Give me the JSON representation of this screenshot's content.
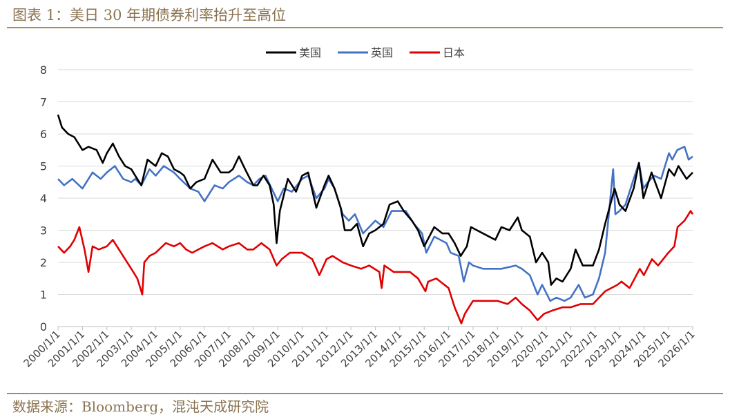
{
  "header": {
    "title": "图表 1：美日 30 年期债券利率抬升至高位"
  },
  "footer": {
    "source": "数据来源：Bloomberg，混沌天成研究院"
  },
  "colors": {
    "us": "#000000",
    "uk": "#4472c4",
    "jp": "#e00000",
    "brand": "#8a7350"
  },
  "chart_data": {
    "type": "line",
    "title": "",
    "xlabel": "",
    "ylabel": "",
    "ylim": [
      0,
      8
    ],
    "yticks": [
      0,
      1,
      2,
      3,
      4,
      5,
      6,
      7,
      8
    ],
    "grid": "horizontal",
    "legend_position": "top-center",
    "xlim": [
      "2000/1/1",
      "2026/1/1"
    ],
    "xtick_labels": [
      "2000/1/1",
      "2001/1/1",
      "2002/1/1",
      "2003/1/1",
      "2004/1/1",
      "2005/1/1",
      "2006/1/1",
      "2007/1/1",
      "2008/1/1",
      "2009/1/1",
      "2010/1/1",
      "2011/1/1",
      "2012/1/1",
      "2013/1/1",
      "2014/1/1",
      "2015/1/1",
      "2016/1/1",
      "2017/1/1",
      "2018/1/1",
      "2019/1/1",
      "2020/1/1",
      "2021/1/1",
      "2022/1/1",
      "2023/1/1",
      "2024/1/1",
      "2025/1/1",
      "2026/1/1"
    ],
    "series": [
      {
        "name": "美国",
        "color": "#000000",
        "points": [
          [
            "2000/1/1",
            6.6
          ],
          [
            "2000/3/1",
            6.2
          ],
          [
            "2000/6/1",
            6.0
          ],
          [
            "2000/9/1",
            5.9
          ],
          [
            "2001/1/1",
            5.5
          ],
          [
            "2001/4/1",
            5.6
          ],
          [
            "2001/8/1",
            5.5
          ],
          [
            "2001/11/1",
            5.1
          ],
          [
            "2002/1/1",
            5.4
          ],
          [
            "2002/4/1",
            5.7
          ],
          [
            "2002/7/1",
            5.3
          ],
          [
            "2002/10/1",
            5.0
          ],
          [
            "2003/1/1",
            4.9
          ],
          [
            "2003/3/1",
            4.7
          ],
          [
            "2003/6/1",
            4.4
          ],
          [
            "2003/9/1",
            5.2
          ],
          [
            "2004/1/1",
            5.0
          ],
          [
            "2004/4/1",
            5.4
          ],
          [
            "2004/7/1",
            5.3
          ],
          [
            "2004/10/1",
            4.9
          ],
          [
            "2005/1/1",
            4.8
          ],
          [
            "2005/3/1",
            4.7
          ],
          [
            "2005/6/1",
            4.3
          ],
          [
            "2005/9/1",
            4.5
          ],
          [
            "2006/1/1",
            4.6
          ],
          [
            "2006/5/1",
            5.2
          ],
          [
            "2006/9/1",
            4.8
          ],
          [
            "2007/1/1",
            4.8
          ],
          [
            "2007/3/1",
            4.9
          ],
          [
            "2007/6/1",
            5.3
          ],
          [
            "2007/9/1",
            4.9
          ],
          [
            "2008/1/1",
            4.4
          ],
          [
            "2008/3/1",
            4.4
          ],
          [
            "2008/6/1",
            4.7
          ],
          [
            "2008/9/1",
            4.4
          ],
          [
            "2008/11/1",
            3.8
          ],
          [
            "2008/12/15",
            2.6
          ],
          [
            "2009/2/1",
            3.6
          ],
          [
            "2009/6/1",
            4.6
          ],
          [
            "2009/10/1",
            4.2
          ],
          [
            "2010/1/1",
            4.7
          ],
          [
            "2010/4/1",
            4.8
          ],
          [
            "2010/8/1",
            3.7
          ],
          [
            "2010/12/1",
            4.4
          ],
          [
            "2011/2/1",
            4.7
          ],
          [
            "2011/5/1",
            4.3
          ],
          [
            "2011/8/1",
            3.7
          ],
          [
            "2011/10/1",
            3.0
          ],
          [
            "2012/1/1",
            3.0
          ],
          [
            "2012/4/1",
            3.2
          ],
          [
            "2012/7/1",
            2.5
          ],
          [
            "2012/10/1",
            2.9
          ],
          [
            "2013/1/1",
            3.0
          ],
          [
            "2013/5/1",
            3.2
          ],
          [
            "2013/8/1",
            3.8
          ],
          [
            "2013/12/1",
            3.9
          ],
          [
            "2014/3/1",
            3.6
          ],
          [
            "2014/7/1",
            3.3
          ],
          [
            "2014/10/1",
            3.0
          ],
          [
            "2015/1/1",
            2.5
          ],
          [
            "2015/6/1",
            3.1
          ],
          [
            "2015/10/1",
            2.9
          ],
          [
            "2016/1/1",
            2.9
          ],
          [
            "2016/4/1",
            2.6
          ],
          [
            "2016/7/1",
            2.2
          ],
          [
            "2016/10/1",
            2.5
          ],
          [
            "2016/12/1",
            3.1
          ],
          [
            "2017/3/1",
            3.0
          ],
          [
            "2017/9/1",
            2.8
          ],
          [
            "2017/12/1",
            2.7
          ],
          [
            "2018/3/1",
            3.1
          ],
          [
            "2018/7/1",
            3.0
          ],
          [
            "2018/11/1",
            3.4
          ],
          [
            "2019/1/1",
            3.0
          ],
          [
            "2019/5/1",
            2.8
          ],
          [
            "2019/8/1",
            2.0
          ],
          [
            "2019/11/1",
            2.3
          ],
          [
            "2020/2/1",
            2.0
          ],
          [
            "2020/3/15",
            1.3
          ],
          [
            "2020/6/1",
            1.5
          ],
          [
            "2020/9/1",
            1.4
          ],
          [
            "2021/1/1",
            1.8
          ],
          [
            "2021/3/15",
            2.4
          ],
          [
            "2021/7/1",
            1.9
          ],
          [
            "2021/12/1",
            1.9
          ],
          [
            "2022/3/1",
            2.4
          ],
          [
            "2022/6/1",
            3.2
          ],
          [
            "2022/10/20",
            4.3
          ],
          [
            "2023/1/1",
            3.8
          ],
          [
            "2023/4/1",
            3.6
          ],
          [
            "2023/8/1",
            4.3
          ],
          [
            "2023/10/20",
            5.1
          ],
          [
            "2023/12/25",
            4.0
          ],
          [
            "2024/4/25",
            4.8
          ],
          [
            "2024/9/15",
            4.0
          ],
          [
            "2025/1/10",
            4.9
          ],
          [
            "2025/4/1",
            4.7
          ],
          [
            "2025/6/1",
            5.0
          ],
          [
            "2025/10/1",
            4.6
          ],
          [
            "2026/1/1",
            4.8
          ]
        ]
      },
      {
        "name": "英国",
        "color": "#4472c4",
        "points": [
          [
            "2000/1/1",
            4.6
          ],
          [
            "2000/4/1",
            4.4
          ],
          [
            "2000/8/1",
            4.6
          ],
          [
            "2001/1/1",
            4.3
          ],
          [
            "2001/6/1",
            4.8
          ],
          [
            "2001/10/1",
            4.6
          ],
          [
            "2002/1/1",
            4.8
          ],
          [
            "2002/5/1",
            5.0
          ],
          [
            "2002/9/1",
            4.6
          ],
          [
            "2003/1/1",
            4.5
          ],
          [
            "2003/3/1",
            4.6
          ],
          [
            "2003/6/1",
            4.4
          ],
          [
            "2003/10/1",
            4.9
          ],
          [
            "2004/1/1",
            4.7
          ],
          [
            "2004/5/1",
            5.0
          ],
          [
            "2004/10/1",
            4.8
          ],
          [
            "2005/1/1",
            4.6
          ],
          [
            "2005/6/1",
            4.3
          ],
          [
            "2005/10/1",
            4.2
          ],
          [
            "2006/1/1",
            3.9
          ],
          [
            "2006/6/1",
            4.4
          ],
          [
            "2006/10/1",
            4.3
          ],
          [
            "2007/1/1",
            4.5
          ],
          [
            "2007/6/1",
            4.7
          ],
          [
            "2007/10/1",
            4.5
          ],
          [
            "2008/1/1",
            4.4
          ],
          [
            "2008/4/1",
            4.6
          ],
          [
            "2008/7/1",
            4.7
          ],
          [
            "2008/10/1",
            4.3
          ],
          [
            "2009/1/1",
            3.9
          ],
          [
            "2009/4/1",
            4.3
          ],
          [
            "2009/8/1",
            4.2
          ],
          [
            "2010/1/1",
            4.6
          ],
          [
            "2010/4/1",
            4.7
          ],
          [
            "2010/8/1",
            4.0
          ],
          [
            "2010/12/1",
            4.3
          ],
          [
            "2011/2/1",
            4.6
          ],
          [
            "2011/5/1",
            4.3
          ],
          [
            "2011/9/1",
            3.5
          ],
          [
            "2011/12/1",
            3.3
          ],
          [
            "2012/3/1",
            3.5
          ],
          [
            "2012/7/1",
            2.9
          ],
          [
            "2012/10/1",
            3.1
          ],
          [
            "2013/1/1",
            3.3
          ],
          [
            "2013/5/1",
            3.1
          ],
          [
            "2013/9/1",
            3.6
          ],
          [
            "2013/12/1",
            3.6
          ],
          [
            "2014/4/1",
            3.6
          ],
          [
            "2014/8/1",
            3.2
          ],
          [
            "2014/12/1",
            2.9
          ],
          [
            "2015/2/1",
            2.3
          ],
          [
            "2015/6/1",
            2.8
          ],
          [
            "2015/12/1",
            2.6
          ],
          [
            "2016/2/1",
            2.3
          ],
          [
            "2016/6/1",
            2.2
          ],
          [
            "2016/8/15",
            1.4
          ],
          [
            "2016/11/1",
            2.0
          ],
          [
            "2017/1/1",
            1.9
          ],
          [
            "2017/6/1",
            1.8
          ],
          [
            "2017/12/1",
            1.8
          ],
          [
            "2018/3/1",
            1.8
          ],
          [
            "2018/10/1",
            1.9
          ],
          [
            "2019/1/1",
            1.8
          ],
          [
            "2019/5/1",
            1.6
          ],
          [
            "2019/8/25",
            1.0
          ],
          [
            "2019/11/1",
            1.3
          ],
          [
            "2020/3/1",
            0.8
          ],
          [
            "2020/6/1",
            0.9
          ],
          [
            "2020/10/1",
            0.8
          ],
          [
            "2021/1/1",
            0.9
          ],
          [
            "2021/5/1",
            1.3
          ],
          [
            "2021/8/1",
            0.9
          ],
          [
            "2021/12/1",
            1.0
          ],
          [
            "2022/3/1",
            1.5
          ],
          [
            "2022/6/1",
            2.3
          ],
          [
            "2022/9/28",
            4.9
          ],
          [
            "2022/11/1",
            3.5
          ],
          [
            "2023/1/1",
            3.6
          ],
          [
            "2023/4/1",
            3.8
          ],
          [
            "2023/8/1",
            4.6
          ],
          [
            "2023/10/20",
            5.1
          ],
          [
            "2023/12/25",
            4.3
          ],
          [
            "2024/3/1",
            4.5
          ],
          [
            "2024/6/1",
            4.7
          ],
          [
            "2024/9/15",
            4.6
          ],
          [
            "2025/1/10",
            5.4
          ],
          [
            "2025/3/1",
            5.2
          ],
          [
            "2025/5/15",
            5.5
          ],
          [
            "2025/9/1",
            5.6
          ],
          [
            "2025/11/1",
            5.2
          ],
          [
            "2026/1/1",
            5.3
          ]
        ]
      },
      {
        "name": "日本",
        "color": "#e00000",
        "points": [
          [
            "2000/1/1",
            2.5
          ],
          [
            "2000/4/1",
            2.3
          ],
          [
            "2000/7/1",
            2.5
          ],
          [
            "2000/9/1",
            2.7
          ],
          [
            "2000/11/15",
            3.1
          ],
          [
            "2001/2/1",
            2.4
          ],
          [
            "2001/4/1",
            1.7
          ],
          [
            "2001/6/1",
            2.5
          ],
          [
            "2001/9/1",
            2.4
          ],
          [
            "2002/1/1",
            2.5
          ],
          [
            "2002/4/1",
            2.7
          ],
          [
            "2002/7/1",
            2.4
          ],
          [
            "2002/10/1",
            2.1
          ],
          [
            "2003/1/1",
            1.8
          ],
          [
            "2003/4/1",
            1.5
          ],
          [
            "2003/6/15",
            1.0
          ],
          [
            "2003/7/15",
            2.0
          ],
          [
            "2003/10/1",
            2.2
          ],
          [
            "2004/1/1",
            2.3
          ],
          [
            "2004/6/1",
            2.6
          ],
          [
            "2004/10/1",
            2.5
          ],
          [
            "2005/1/1",
            2.6
          ],
          [
            "2005/4/1",
            2.4
          ],
          [
            "2005/7/1",
            2.3
          ],
          [
            "2005/10/1",
            2.4
          ],
          [
            "2006/1/1",
            2.5
          ],
          [
            "2006/5/1",
            2.6
          ],
          [
            "2006/10/1",
            2.4
          ],
          [
            "2007/1/1",
            2.5
          ],
          [
            "2007/6/1",
            2.6
          ],
          [
            "2007/10/1",
            2.4
          ],
          [
            "2008/1/1",
            2.4
          ],
          [
            "2008/5/1",
            2.6
          ],
          [
            "2008/9/1",
            2.4
          ],
          [
            "2008/12/15",
            1.9
          ],
          [
            "2009/3/1",
            2.1
          ],
          [
            "2009/7/1",
            2.3
          ],
          [
            "2010/1/1",
            2.3
          ],
          [
            "2010/6/1",
            2.1
          ],
          [
            "2010/9/15",
            1.6
          ],
          [
            "2011/1/1",
            2.1
          ],
          [
            "2011/4/1",
            2.2
          ],
          [
            "2011/9/1",
            2.0
          ],
          [
            "2012/1/1",
            1.9
          ],
          [
            "2012/6/1",
            1.8
          ],
          [
            "2012/10/1",
            1.9
          ],
          [
            "2013/3/1",
            1.7
          ],
          [
            "2013/4/5",
            1.2
          ],
          [
            "2013/5/15",
            1.9
          ],
          [
            "2013/10/1",
            1.7
          ],
          [
            "2014/1/1",
            1.7
          ],
          [
            "2014/6/1",
            1.7
          ],
          [
            "2014/10/1",
            1.5
          ],
          [
            "2015/1/20",
            1.1
          ],
          [
            "2015/3/1",
            1.4
          ],
          [
            "2015/7/1",
            1.5
          ],
          [
            "2016/1/1",
            1.2
          ],
          [
            "2016/4/1",
            0.6
          ],
          [
            "2016/7/10",
            0.1
          ],
          [
            "2016/9/1",
            0.4
          ],
          [
            "2017/1/1",
            0.8
          ],
          [
            "2017/6/1",
            0.8
          ],
          [
            "2018/1/1",
            0.8
          ],
          [
            "2018/6/1",
            0.7
          ],
          [
            "2018/10/1",
            0.9
          ],
          [
            "2019/1/1",
            0.7
          ],
          [
            "2019/5/1",
            0.5
          ],
          [
            "2019/8/25",
            0.2
          ],
          [
            "2019/12/1",
            0.4
          ],
          [
            "2020/4/1",
            0.5
          ],
          [
            "2020/9/1",
            0.6
          ],
          [
            "2021/1/1",
            0.6
          ],
          [
            "2021/6/1",
            0.7
          ],
          [
            "2021/12/1",
            0.7
          ],
          [
            "2022/3/1",
            0.9
          ],
          [
            "2022/6/1",
            1.1
          ],
          [
            "2022/12/1",
            1.3
          ],
          [
            "2023/2/1",
            1.4
          ],
          [
            "2023/6/1",
            1.2
          ],
          [
            "2023/11/1",
            1.8
          ],
          [
            "2024/1/1",
            1.6
          ],
          [
            "2024/5/1",
            2.1
          ],
          [
            "2024/8/1",
            1.9
          ],
          [
            "2025/1/1",
            2.3
          ],
          [
            "2025/4/1",
            2.5
          ],
          [
            "2025/5/20",
            3.1
          ],
          [
            "2025/9/1",
            3.3
          ],
          [
            "2025/12/1",
            3.6
          ],
          [
            "2026/1/1",
            3.5
          ]
        ]
      }
    ]
  }
}
